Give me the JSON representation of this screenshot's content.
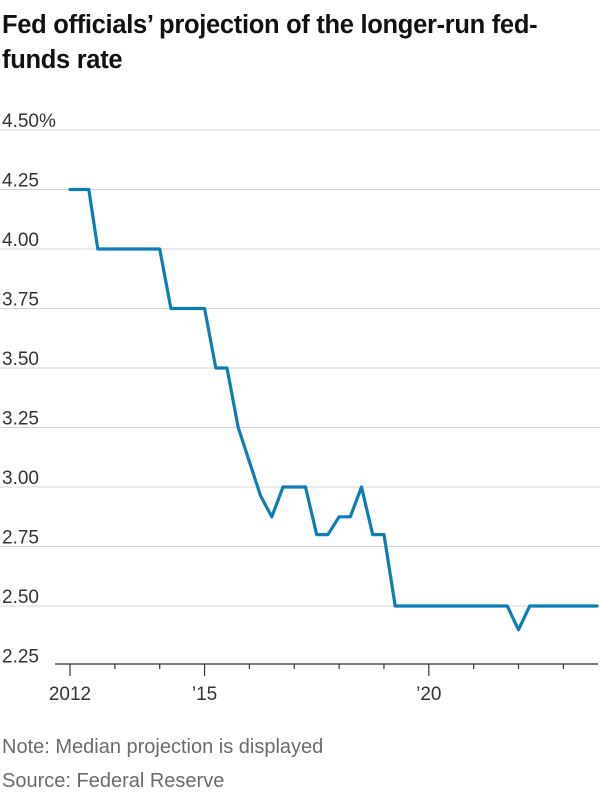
{
  "title": "Fed officials’ projection of the longer-run fed-\nfunds rate",
  "note": "Note: Median projection is displayed",
  "source": "Source: Federal Reserve",
  "colors": {
    "line": "#0f7db5",
    "grid": "#d4d4d4",
    "axis": "#333333"
  },
  "chart_data": {
    "type": "line",
    "title": "Fed officials’ projection of the longer-run fed-funds rate",
    "xlabel": "",
    "ylabel": "",
    "ylim": [
      2.25,
      4.5
    ],
    "xlim": [
      2012,
      2023.75
    ],
    "y_ticks": [
      2.25,
      2.5,
      2.75,
      3.0,
      3.25,
      3.5,
      3.75,
      4.0,
      4.25,
      4.5
    ],
    "y_tick_labels": [
      "2.25",
      "2.50",
      "2.75",
      "3.00",
      "3.25",
      "3.50",
      "3.75",
      "4.00",
      "4.25",
      "4.50%"
    ],
    "x_major_ticks": [
      2012,
      2015,
      2020
    ],
    "x_tick_labels": [
      "2012",
      "’15",
      "’20"
    ],
    "x_minor_ticks": [
      2013,
      2014,
      2016,
      2017,
      2018,
      2019,
      2021,
      2022,
      2023
    ],
    "grid": true,
    "series": [
      {
        "x": [
          2012.0,
          2012.42,
          2012.62,
          2014.0,
          2014.25,
          2015.0,
          2015.25,
          2015.5,
          2015.75,
          2016.25,
          2016.5,
          2016.75,
          2017.25,
          2017.5,
          2017.75,
          2018.0,
          2018.25,
          2018.5,
          2018.75,
          2019.0,
          2019.25,
          2019.5,
          2021.75,
          2022.0,
          2022.25,
          2023.75
        ],
        "y": [
          4.25,
          4.25,
          4.0,
          4.0,
          3.75,
          3.75,
          3.5,
          3.5,
          3.25,
          2.9625,
          2.875,
          3.0,
          3.0,
          2.8,
          2.8,
          2.875,
          2.875,
          3.0,
          2.8,
          2.8,
          2.5,
          2.5,
          2.5,
          2.4,
          2.5,
          2.5
        ]
      }
    ]
  }
}
